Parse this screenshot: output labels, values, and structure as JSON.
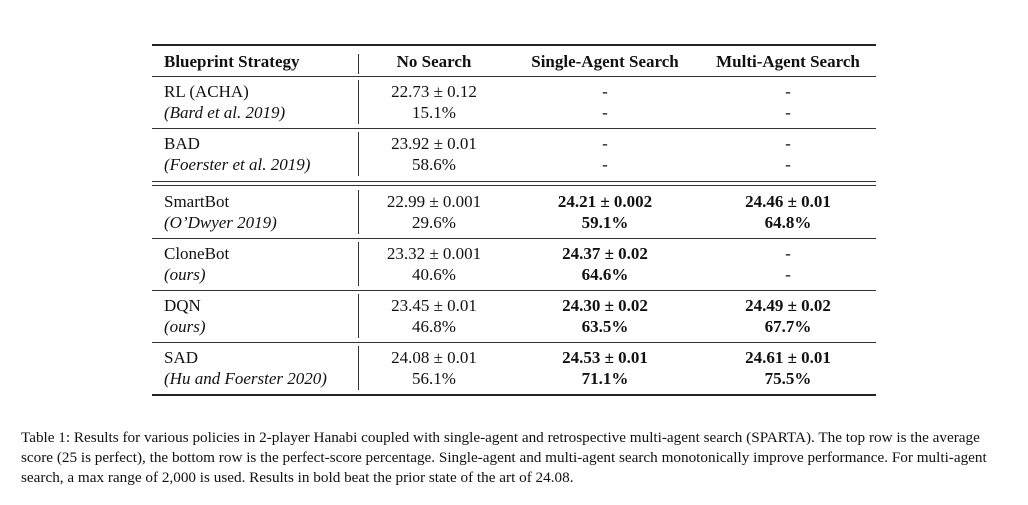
{
  "table": {
    "headers": [
      "Blueprint Strategy",
      "No Search",
      "Single-Agent Search",
      "Multi-Agent Search"
    ],
    "rows": [
      {
        "name": "RL (ACHA)",
        "cite": "(Bard et al. 2019)",
        "ns_score": "22.73 ± 0.12",
        "ns_pct": "15.1%",
        "sa_score": "-",
        "sa_pct": "-",
        "ma_score": "-",
        "ma_pct": "-"
      },
      {
        "name": "BAD",
        "cite": "(Foerster et al. 2019)",
        "ns_score": "23.92 ± 0.01",
        "ns_pct": "58.6%",
        "sa_score": "-",
        "sa_pct": "-",
        "ma_score": "-",
        "ma_pct": "-"
      },
      {
        "name": "SmartBot",
        "cite": "(O’Dwyer 2019)",
        "ns_score": "22.99 ± 0.001",
        "ns_pct": "29.6%",
        "sa_score": "24.21 ± 0.002",
        "sa_pct": "59.1%",
        "ma_score": "24.46 ± 0.01",
        "ma_pct": "64.8%"
      },
      {
        "name": "CloneBot",
        "cite": "(ours)",
        "ns_score": "23.32 ± 0.001",
        "ns_pct": "40.6%",
        "sa_score": "24.37 ± 0.02",
        "sa_pct": "64.6%",
        "ma_score": "-",
        "ma_pct": "-"
      },
      {
        "name": "DQN",
        "cite": "(ours)",
        "ns_score": "23.45 ± 0.01",
        "ns_pct": "46.8%",
        "sa_score": "24.30 ± 0.02",
        "sa_pct": "63.5%",
        "ma_score": "24.49 ± 0.02",
        "ma_pct": "67.7%"
      },
      {
        "name": "SAD",
        "cite": "(Hu and Foerster 2020)",
        "ns_score": "24.08 ± 0.01",
        "ns_pct": "56.1%",
        "sa_score": "24.53 ± 0.01",
        "sa_pct": "71.1%",
        "ma_score": "24.61 ± 0.01",
        "ma_pct": "75.5%"
      }
    ]
  },
  "caption": {
    "label": "Table 1:",
    "text": "Results for various policies in 2-player Hanabi coupled with single-agent and retrospective multi-agent search (SPARTA). The top row is the average score (25 is perfect), the bottom row is the perfect-score percentage. Single-agent and multi-agent search monotonically improve performance. For multi-agent search, a max range of 2,000 is used. Results in bold beat the prior state of the art of 24.08."
  }
}
